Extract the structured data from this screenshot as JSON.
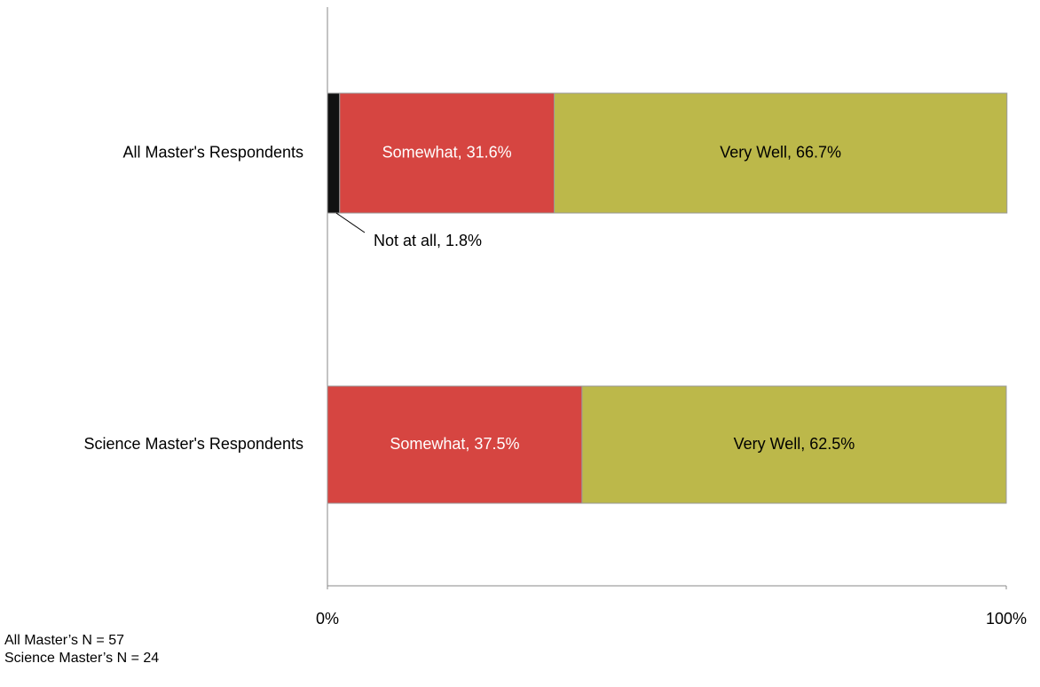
{
  "chart_data": {
    "type": "stacked-bar-horizontal",
    "categories": [
      "All Master's Respondents",
      "Science Master's Respondents"
    ],
    "series": [
      {
        "color": "#111111",
        "values": [
          1.8,
          null
        ],
        "value_labels": [
          "Not at all, 1.8%",
          null
        ]
      },
      {
        "color": "#d64541",
        "values": [
          31.6,
          37.5
        ],
        "value_labels": [
          "Somewhat, 31.6%",
          "Somewhat, 37.5%"
        ]
      },
      {
        "color": "#bcb84a",
        "values": [
          66.7,
          62.5
        ],
        "value_labels": [
          "Very Well, 66.7%",
          "Very Well, 62.5%"
        ]
      }
    ],
    "xlim": [
      0,
      100
    ],
    "xticks": [
      {
        "value": 0,
        "label": "0%"
      },
      {
        "value": 100,
        "label": "100%"
      }
    ],
    "annotations": [
      "All Master’s N = 57",
      "Science Master’s N = 24"
    ]
  }
}
